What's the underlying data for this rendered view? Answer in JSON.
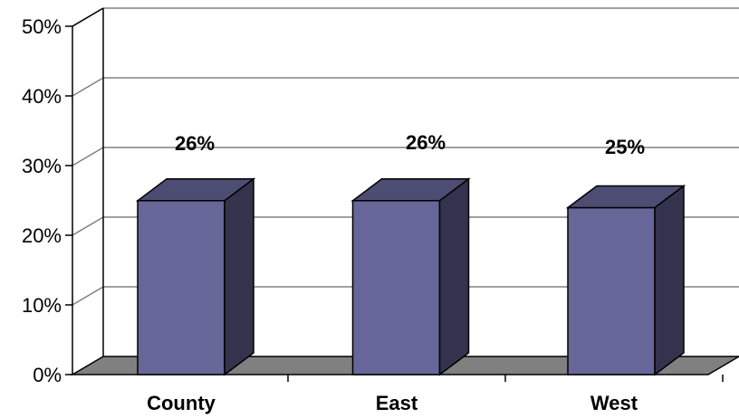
{
  "chart_data": {
    "type": "bar",
    "style": "3d-column",
    "categories": [
      "County",
      "East",
      "West"
    ],
    "values": [
      26,
      26,
      25
    ],
    "data_labels": [
      "26%",
      "26%",
      "25%"
    ],
    "ylim": [
      0,
      50
    ],
    "yticks": [
      "0%",
      "10%",
      "20%",
      "30%",
      "40%",
      "50%"
    ],
    "grid": true,
    "legend": "none",
    "colors": {
      "bar_front": "#666699",
      "bar_top": "#4d4d73",
      "bar_side": "#33334d",
      "floor": "#808080",
      "grid": "#808080"
    }
  }
}
